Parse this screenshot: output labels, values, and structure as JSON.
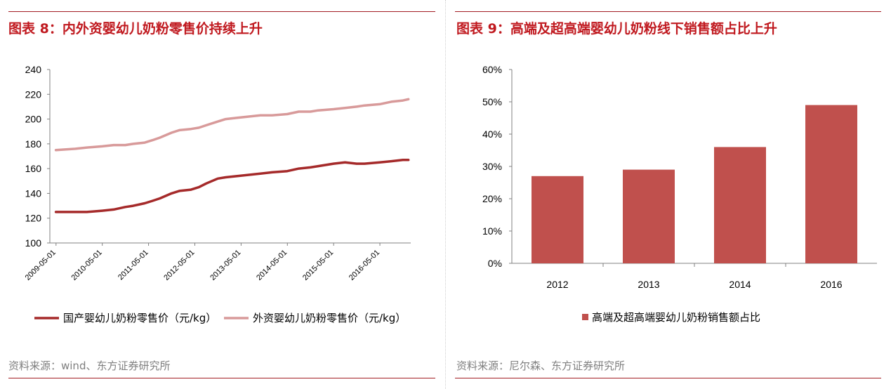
{
  "left_panel": {
    "title": "图表 8：内外资婴幼儿奶粉零售价持续上升",
    "source": "资料来源：wind、东方证券研究所"
  },
  "right_panel": {
    "title": "图表 9：高端及超高端婴幼儿奶粉线下销售额占比上升",
    "source": "资料来源：尼尔森、东方证券研究所"
  },
  "chart_data": [
    {
      "type": "line",
      "title": "",
      "xlabel": "",
      "ylabel": "",
      "ylim": [
        100,
        240
      ],
      "yticks": [
        100,
        120,
        140,
        160,
        180,
        200,
        220,
        240
      ],
      "xticks": [
        "2009-05-01",
        "2010-05-01",
        "2011-05-01",
        "2012-05-01",
        "2013-05-01",
        "2014-05-01",
        "2015-05-01",
        "2016-05-01"
      ],
      "x": [
        2009.33,
        2009.75,
        2010.0,
        2010.33,
        2010.58,
        2010.83,
        2011.0,
        2011.25,
        2011.42,
        2011.58,
        2011.83,
        2012.0,
        2012.25,
        2012.42,
        2012.58,
        2012.83,
        2013.0,
        2013.25,
        2013.5,
        2013.75,
        2014.0,
        2014.33,
        2014.58,
        2014.83,
        2015.0,
        2015.33,
        2015.58,
        2015.83,
        2016.0,
        2016.33,
        2016.58,
        2016.83,
        2016.95
      ],
      "legend_position": "bottom",
      "series": [
        {
          "name": "国产婴幼儿奶粉零售价（元/kg）",
          "color": "#a52a2a",
          "values": [
            125,
            125,
            125,
            126,
            127,
            129,
            130,
            132,
            134,
            136,
            140,
            142,
            143,
            145,
            148,
            152,
            153,
            154,
            155,
            156,
            157,
            158,
            160,
            161,
            162,
            164,
            165,
            164,
            164,
            165,
            166,
            167,
            167
          ]
        },
        {
          "name": "外资婴幼儿奶粉零售价（元/kg）",
          "color": "#d89a9a",
          "values": [
            175,
            176,
            177,
            178,
            179,
            179,
            180,
            181,
            183,
            185,
            189,
            191,
            192,
            193,
            195,
            198,
            200,
            201,
            202,
            203,
            203,
            204,
            206,
            206,
            207,
            208,
            209,
            210,
            211,
            212,
            214,
            215,
            216
          ]
        }
      ]
    },
    {
      "type": "bar",
      "title": "",
      "xlabel": "",
      "ylabel": "",
      "ylim": [
        0,
        60
      ],
      "yticks": [
        0,
        10,
        20,
        30,
        40,
        50,
        60
      ],
      "ytick_labels": [
        "0%",
        "10%",
        "20%",
        "30%",
        "40%",
        "50%",
        "60%"
      ],
      "categories": [
        "2012",
        "2013",
        "2014",
        "2016"
      ],
      "legend_position": "bottom",
      "series": [
        {
          "name": "高端及超高端婴幼儿奶粉销售额占比",
          "color": "#c0504d",
          "values": [
            27,
            29,
            36,
            49
          ]
        }
      ]
    }
  ]
}
